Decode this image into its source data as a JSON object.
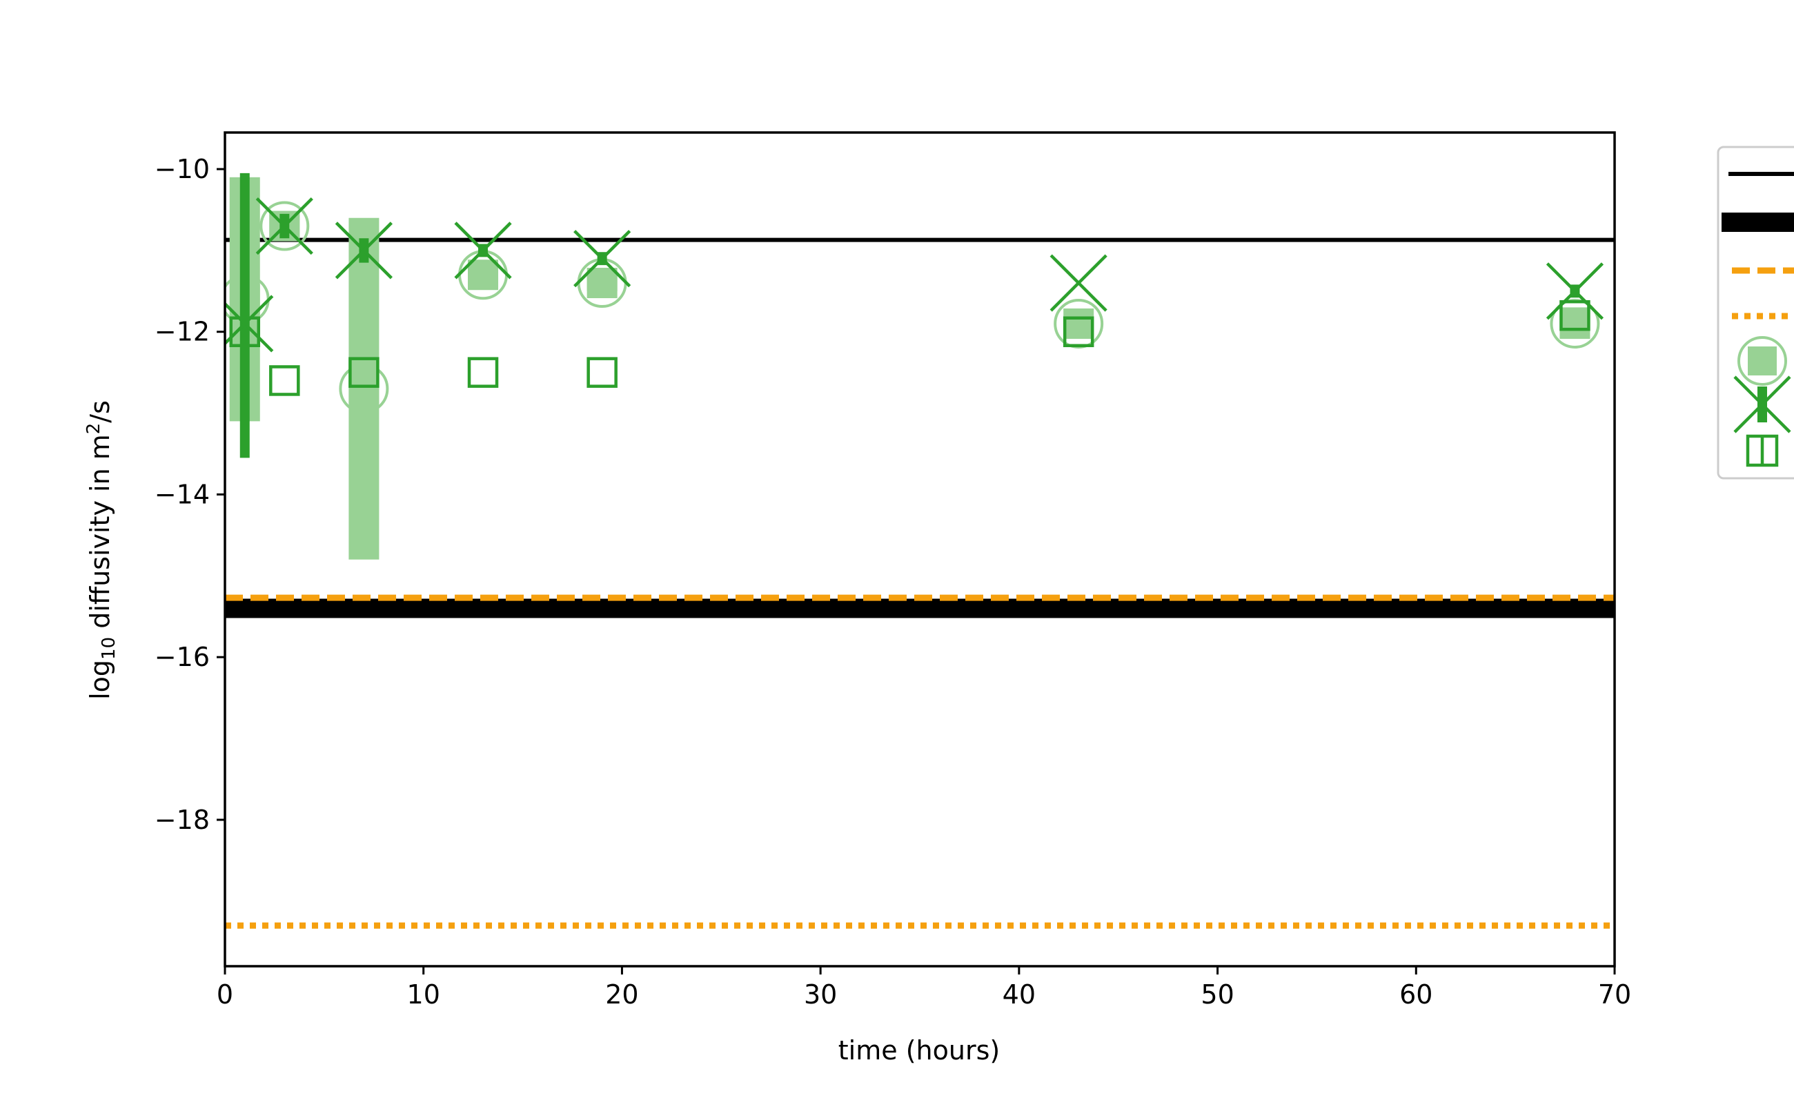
{
  "colors": {
    "green": "#2ca02c",
    "green_light": "#98d294",
    "orange": "#f5a00f",
    "black": "#000000",
    "legend_border": "#cccccc"
  },
  "chart_data": {
    "type": "scatter",
    "xlabel": "time (hours)",
    "ylabel": {
      "prefix": "log",
      "subscript": "10",
      "middle": " diffusivity in m",
      "superscript": "2",
      "suffix": "/s"
    },
    "xlim": [
      0,
      70
    ],
    "ylim": [
      -19.8,
      -9.55
    ],
    "xticks": [
      0,
      10,
      20,
      30,
      40,
      50,
      60,
      70
    ],
    "yticks": [
      -10,
      -12,
      -14,
      -16,
      -18
    ],
    "tick_labels": {
      "x": [
        "0",
        "10",
        "20",
        "30",
        "40",
        "50",
        "60",
        "70"
      ],
      "y": [
        "−10",
        "−12",
        "−14",
        "−16",
        "−18"
      ]
    },
    "grid": false,
    "legend_position": "upper right, outside plot area (labels cut off)",
    "reference_lines": [
      {
        "id": "black-thin",
        "y": -10.87,
        "color": "#000000",
        "style": "solid",
        "weight": "thin"
      },
      {
        "id": "black-thick",
        "y": -15.4,
        "color": "#000000",
        "style": "solid",
        "weight": "thick"
      },
      {
        "id": "orange-dashed",
        "y": -15.27,
        "color": "#f5a00f",
        "style": "dashed",
        "weight": "medium"
      },
      {
        "id": "orange-dotted",
        "y": -19.3,
        "color": "#f5a00f",
        "style": "dotted",
        "weight": "medium"
      }
    ],
    "series": [
      {
        "id": "circle-band",
        "marker": "circle",
        "color": "#98d294",
        "points": [
          {
            "x": 1,
            "y": -11.6,
            "lo": -13.1,
            "hi": -10.1
          },
          {
            "x": 3,
            "y": -10.7,
            "lo": -10.85,
            "hi": -10.55
          },
          {
            "x": 7,
            "y": -12.7,
            "lo": -14.8,
            "hi": -10.6
          },
          {
            "x": 13,
            "y": -11.3,
            "lo": -11.45,
            "hi": -11.15
          },
          {
            "x": 19,
            "y": -11.4,
            "lo": -11.5,
            "hi": -11.3
          },
          {
            "x": 43,
            "y": -11.9,
            "lo": -12.0,
            "hi": -11.8
          },
          {
            "x": 68,
            "y": -11.9,
            "lo": -12.0,
            "hi": -11.7
          }
        ]
      },
      {
        "id": "x-errorbar",
        "marker": "x",
        "color": "#2ca02c",
        "points": [
          {
            "x": 1,
            "y": -11.9,
            "lo": -13.55,
            "hi": -10.05
          },
          {
            "x": 3,
            "y": -10.7,
            "lo": -10.85,
            "hi": -10.55
          },
          {
            "x": 7,
            "y": -11.0,
            "lo": -11.15,
            "hi": -10.85
          },
          {
            "x": 13,
            "y": -11.0,
            "lo": -11.08,
            "hi": -10.92
          },
          {
            "x": 19,
            "y": -11.1,
            "lo": -11.18,
            "hi": -11.02
          },
          {
            "x": 43,
            "y": -11.4,
            "lo": -11.4,
            "hi": -11.4
          },
          {
            "x": 68,
            "y": -11.5,
            "lo": -11.58,
            "hi": -11.42
          }
        ]
      },
      {
        "id": "open-square",
        "marker": "square",
        "color": "#2ca02c",
        "points": [
          {
            "x": 1,
            "y": -12.0
          },
          {
            "x": 3,
            "y": -12.6
          },
          {
            "x": 7,
            "y": -12.5
          },
          {
            "x": 13,
            "y": -12.5
          },
          {
            "x": 19,
            "y": -12.5
          },
          {
            "x": 43,
            "y": -12.0
          },
          {
            "x": 68,
            "y": -11.8
          }
        ]
      }
    ]
  }
}
